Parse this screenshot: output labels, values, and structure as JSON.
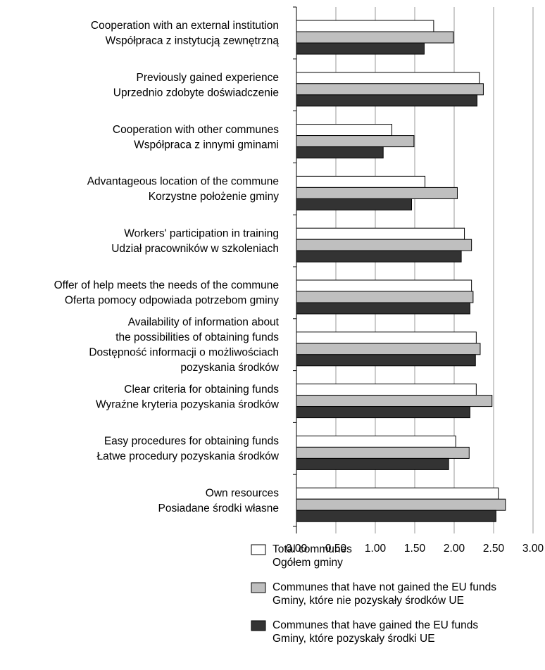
{
  "chart_data": {
    "type": "bar",
    "orientation": "horizontal",
    "categories": [
      [
        "Cooperation with an external institution",
        "Współpraca z instytucją zewnętrzną"
      ],
      [
        "Previously gained experience",
        "Uprzednio zdobyte doświadczenie"
      ],
      [
        "Cooperation with other communes",
        "Współpraca z innymi gminami"
      ],
      [
        "Advantageous location of the commune",
        "Korzystne położenie gminy"
      ],
      [
        "Workers' participation in training",
        "Udział pracowników w szkoleniach"
      ],
      [
        "Offer of help meets the needs of the commune",
        "Oferta pomocy odpowiada potrzebom gminy"
      ],
      [
        "Availability of information about",
        "the possibilities of obtaining funds",
        "Dostępność informacji o możliwościach",
        "pozyskania środków"
      ],
      [
        "Clear criteria for obtaining funds",
        "Wyraźne kryteria pozyskania środków"
      ],
      [
        "Easy procedures for obtaining funds",
        "Łatwe procedury pozyskania środków"
      ],
      [
        "Own resources",
        "Posiadane środki własne"
      ]
    ],
    "series": [
      {
        "name": [
          "Total communes",
          "Ogółem gminy"
        ],
        "color": "#ffffff",
        "values": [
          1.74,
          2.32,
          1.21,
          1.63,
          2.13,
          2.22,
          2.28,
          2.28,
          2.02,
          2.56
        ]
      },
      {
        "name": [
          "Communes that have not gained the EU funds",
          "Gminy, które nie pozyskały środków UE"
        ],
        "color": "#bfbfbf",
        "values": [
          1.99,
          2.37,
          1.49,
          2.04,
          2.22,
          2.24,
          2.33,
          2.48,
          2.19,
          2.65
        ]
      },
      {
        "name": [
          "Communes that have gained the EU funds",
          "Gminy, które pozyskały środki UE"
        ],
        "color": "#333333",
        "values": [
          1.62,
          2.29,
          1.1,
          1.46,
          2.09,
          2.2,
          2.27,
          2.2,
          1.93,
          2.53
        ]
      }
    ],
    "xlim": [
      0,
      3
    ],
    "xticks": [
      "0.00",
      "0.50",
      "1.00",
      "1.50",
      "2.00",
      "2.50",
      "3.00"
    ],
    "grid": true,
    "legend_position": "bottom"
  }
}
